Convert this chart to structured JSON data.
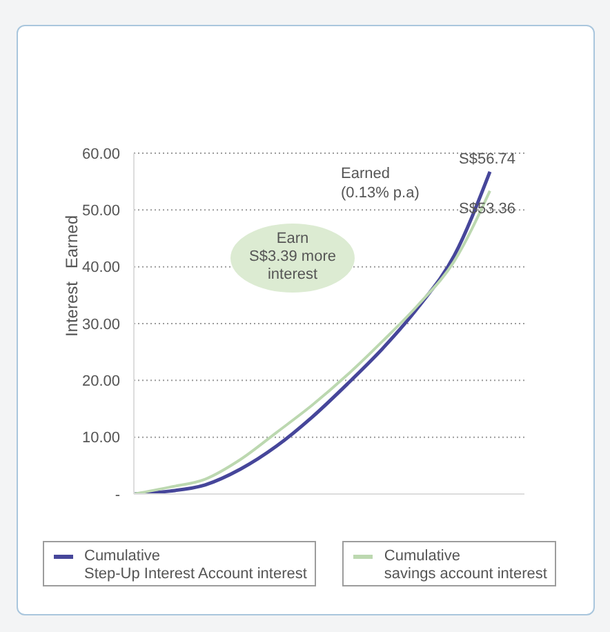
{
  "chart_data": {
    "type": "line",
    "ylabel": "Interest Earned",
    "categories": [
      null,
      null,
      null,
      null,
      null,
      null,
      null,
      null,
      null,
      null,
      null
    ],
    "series": [
      {
        "name": "Cumulative\nStep-Up Interest Account interest",
        "color": "#46469a",
        "values": [
          0,
          0.5,
          1.6,
          4.4,
          8.4,
          13.5,
          19.4,
          25.7,
          33,
          42,
          56.74
        ],
        "value_labels": [
          null,
          null,
          null,
          null,
          null,
          null,
          null,
          null,
          null,
          null,
          "S$56.74"
        ]
      },
      {
        "name": "Cumulative\nsavings account interest",
        "color": "#bcd8b0",
        "values": [
          0,
          1.2,
          2.6,
          6.1,
          10.8,
          15.6,
          21,
          27,
          33.4,
          41,
          53.36
        ],
        "value_labels": [
          null,
          null,
          null,
          null,
          null,
          null,
          null,
          null,
          null,
          null,
          "S$53.36"
        ]
      }
    ],
    "ylim": [
      0,
      60
    ],
    "yticks": [
      {
        "value": 0,
        "label": "-"
      },
      {
        "value": 10,
        "label": "10.00"
      },
      {
        "value": 20,
        "label": "20.00"
      },
      {
        "value": 30,
        "label": "30.00"
      },
      {
        "value": 40,
        "label": "40.00"
      },
      {
        "value": 50,
        "label": "50.00"
      },
      {
        "value": 60,
        "label": "60.00"
      }
    ],
    "grid": "y",
    "legend": "bottom",
    "annotations": [
      "Earned\n(0.13% p.a)",
      "Earn\nS$3.39 more\ninterest"
    ]
  }
}
